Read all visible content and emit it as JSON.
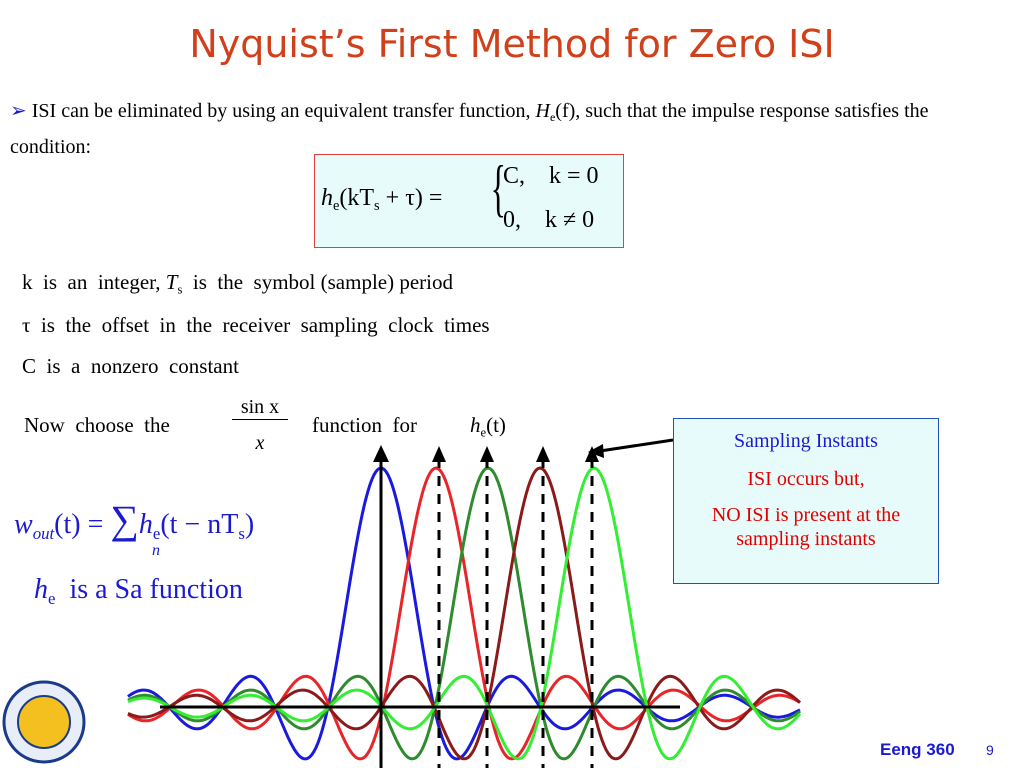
{
  "title": "Nyquist’s First Method for Zero ISI",
  "bullet": {
    "text1": "ISI can be eliminated by using an equivalent transfer function, ",
    "H": "H",
    "sub": "e",
    "arg": "(f)",
    "text2": ", such that the impulse response satisfies the condition:"
  },
  "condition": {
    "h": "h",
    "e": "e",
    "arg1": "(kT",
    "s": "s",
    "arg2": " + τ) =",
    "case1": "C,    k = 0",
    "case2": "0,    k ≠ 0"
  },
  "notes": {
    "line1": {
      "a": "k  is  an  integer, ",
      "T": "T",
      "s": "s",
      "b": "  is  the  symbol (sample) period"
    },
    "line2": "τ  is  the  offset  in  the  receiver  sampling  clock  times",
    "line3": "C  is  a  nonzero  constant"
  },
  "choose": {
    "a": "Now  choose  the",
    "num": "sin x",
    "den": "x",
    "b": "function  for",
    "h": "h",
    "e": "e",
    "t": "(t)"
  },
  "wout": {
    "w": "w",
    "out": "out",
    "a": "(t) =",
    "sum": "∑",
    "n": "n",
    "h": "h",
    "e": "e",
    "b": "(t − nT",
    "s": "s",
    "c": ")"
  },
  "sa": {
    "h": "h",
    "e": "e",
    "text": "is a Sa function"
  },
  "callout": {
    "line1": "Sampling Instants",
    "line2": "ISI occurs but,",
    "line3": "NO ISI is present at the sampling instants"
  },
  "footer": {
    "course": "Eeng 360",
    "page": "9"
  }
}
